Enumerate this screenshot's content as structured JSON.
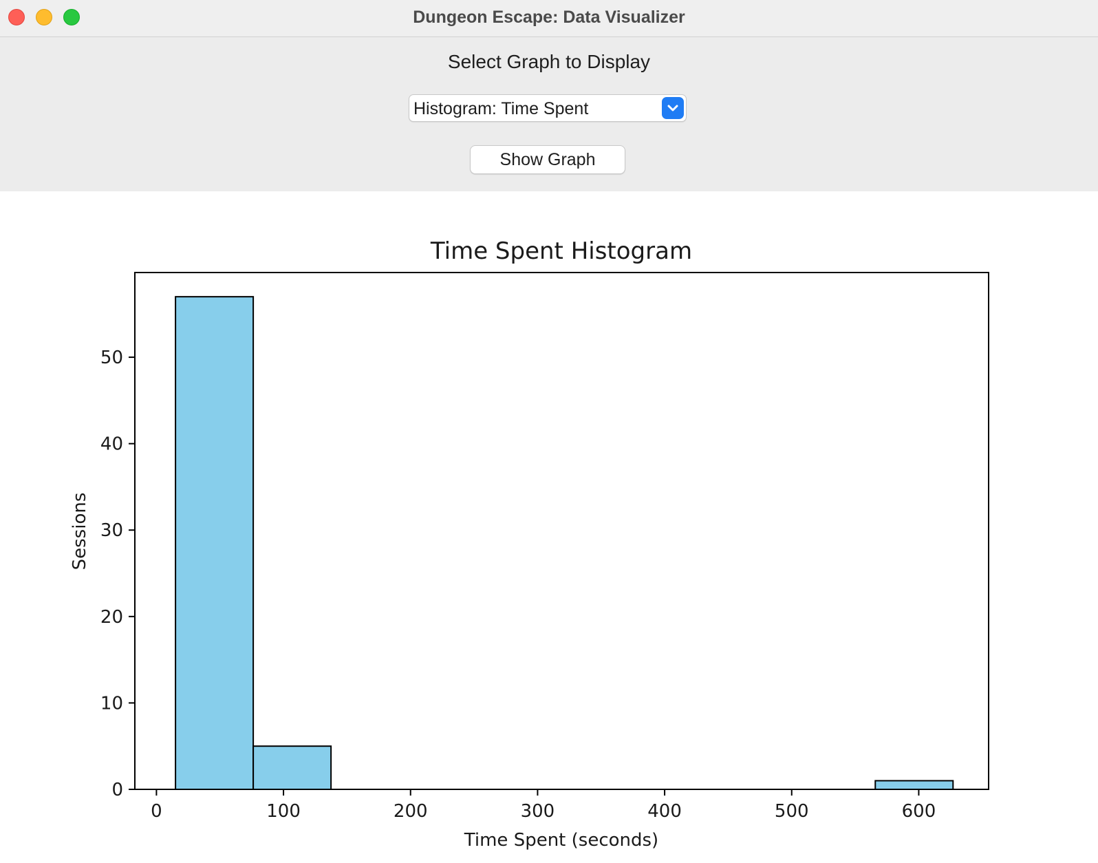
{
  "window": {
    "title": "Dungeon Escape: Data Visualizer"
  },
  "controls": {
    "prompt": "Select Graph to Display",
    "select": {
      "selected": "Histogram: Time Spent"
    },
    "show_button": "Show Graph"
  },
  "chart_data": {
    "type": "bar",
    "title": "Time Spent Histogram",
    "xlabel": "Time Spent (seconds)",
    "ylabel": "Sessions",
    "xlim": [
      -17,
      655
    ],
    "ylim": [
      0,
      59.8
    ],
    "xticks": [
      0,
      100,
      200,
      300,
      400,
      500,
      600
    ],
    "yticks": [
      0,
      10,
      20,
      30,
      40,
      50
    ],
    "bin_edges": [
      15,
      76.2,
      137.4,
      198.6,
      259.8,
      321,
      382.2,
      443.4,
      504.6,
      565.8,
      627
    ],
    "values": [
      57,
      5,
      0,
      0,
      0,
      0,
      0,
      0,
      0,
      1
    ],
    "bar_color": "#87ceeb",
    "edge_color": "#000000",
    "grid": false
  }
}
